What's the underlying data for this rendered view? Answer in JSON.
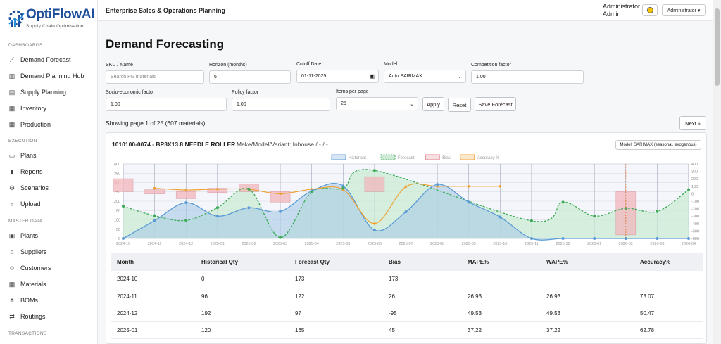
{
  "sidebar": {
    "logo_text": "OptiFlowAI",
    "logo_sub": "Supply Chain Optimisation",
    "sections": [
      "DASHBOARDS",
      "EXECUTION",
      "MASTER DATA",
      "TRANSACTIONS"
    ],
    "dashboards": [
      "Demand Forecast",
      "Demand Planning Hub",
      "Supply Planning",
      "Inventory",
      "Production"
    ],
    "execution": [
      "Plans",
      "Reports",
      "Scenarios",
      "Upload"
    ],
    "master_data": [
      "Plants",
      "Suppliers",
      "Customers",
      "Materials",
      "BOMs",
      "Routings"
    ]
  },
  "topbar": {
    "title": "Enterprise Sales & Operations Planning",
    "user_line1": "Administrator",
    "user_line2": "Admin",
    "role_button": "Administrator ▾"
  },
  "page": {
    "title": "Demand Forecasting",
    "sku_label": "SKU / Name",
    "sku_placeholder": "Search FG materials",
    "horizon_label": "Horizon (months)",
    "horizon_value": "6",
    "cutoff_label": "Cutoff Date",
    "cutoff_value": "01-11-2025",
    "model_label": "Model",
    "model_value": "Auto SARIMAX",
    "competition_label": "Competition factor",
    "competition_value": "1.00",
    "socio_label": "Socio-economic factor",
    "socio_value": "1.00",
    "policy_label": "Policy factor",
    "policy_value": "1.00",
    "items_label": "Items per page",
    "items_value": "25",
    "apply": "Apply",
    "reset": "Reset",
    "save": "Save Forecast",
    "showing": "Showing page 1 of 25 (607 materials)",
    "next": "Next »"
  },
  "card": {
    "title": "1010100-0074 - BP3X13.8 NEEDLE ROLLER",
    "subtitle": "Make/Model/Variant: Inhouse / - / -",
    "model_badge": "Model: SARIMAX (seasonal, exogenous)"
  },
  "chart_data": {
    "type": "line",
    "legend_position": "top",
    "categories": [
      "2024-10",
      "2024-11",
      "2024-12",
      "2025-01",
      "2025-02",
      "2025-03",
      "2025-04",
      "2025-05",
      "2025-06",
      "2025-07",
      "2025-08",
      "2025-09",
      "2025-10",
      "2025-11",
      "2025-12",
      "2026-01",
      "2026-02",
      "2026-03",
      "2026-04"
    ],
    "ylim_left": [
      0,
      400
    ],
    "left_ticks": [
      "0",
      "50",
      "100",
      "150",
      "200",
      "250",
      "300",
      "350",
      "400"
    ],
    "ylim_right": [
      -600,
      400
    ],
    "right_ticks": [
      "-600",
      "-500",
      "-400",
      "-300",
      "-200",
      "-100",
      "0",
      "100",
      "200",
      "300",
      "400"
    ],
    "cutoff_category": "2026-02",
    "series": [
      {
        "name": "Historical",
        "axis": "left",
        "color": "#5b9bd5",
        "values": [
          0,
          96,
          192,
          120,
          165,
          145,
          255,
          282,
          45,
          143,
          290,
          195,
          115,
          0,
          0,
          0,
          0,
          0,
          0
        ]
      },
      {
        "name": "Forecast",
        "axis": "left",
        "color": "#3aaa55",
        "values": [
          173,
          122,
          97,
          165,
          265,
          5,
          250,
          270,
          365,
          null,
          null,
          null,
          null,
          95,
          195,
          120,
          162,
          145,
          262
        ]
      },
      {
        "name": "Bias",
        "axis": "right",
        "color": "#e07b85",
        "values": [
          173,
          26,
          -95,
          45,
          100,
          -140,
          null,
          null,
          200,
          null,
          null,
          null,
          null,
          null,
          null,
          null,
          -580,
          null,
          null
        ]
      },
      {
        "name": "Accuracy %",
        "axis": "right",
        "color": "#f0a030",
        "values": [
          null,
          73.07,
          50.47,
          62.78,
          null,
          0,
          null,
          null,
          -400,
          null,
          null,
          null,
          null,
          null,
          null,
          null,
          null,
          null,
          null
        ]
      }
    ]
  },
  "table": {
    "headers": [
      "Month",
      "Historical Qty",
      "Forecast Qty",
      "Bias",
      "MAPE%",
      "WAPE%",
      "Accuracy%"
    ],
    "rows": [
      [
        "2024-10",
        "0",
        "173",
        "173",
        "",
        "",
        ""
      ],
      [
        "2024-11",
        "96",
        "122",
        "26",
        "26.93",
        "26.93",
        "73.07"
      ],
      [
        "2024-12",
        "192",
        "97",
        "-95",
        "49.53",
        "49.53",
        "50.47"
      ],
      [
        "2025-01",
        "120",
        "165",
        "45",
        "37.22",
        "37.22",
        "62.78"
      ]
    ]
  }
}
